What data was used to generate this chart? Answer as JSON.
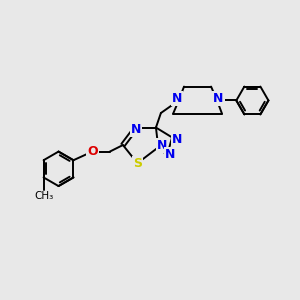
{
  "bg_color": "#e8e8e8",
  "bond_color": "#000000",
  "N_color": "#0000ee",
  "S_color": "#cccc00",
  "O_color": "#dd0000",
  "line_width": 1.4,
  "figsize": [
    3.0,
    3.0
  ],
  "dpi": 100,
  "xlim": [
    0,
    10
  ],
  "ylim": [
    0,
    10
  ]
}
